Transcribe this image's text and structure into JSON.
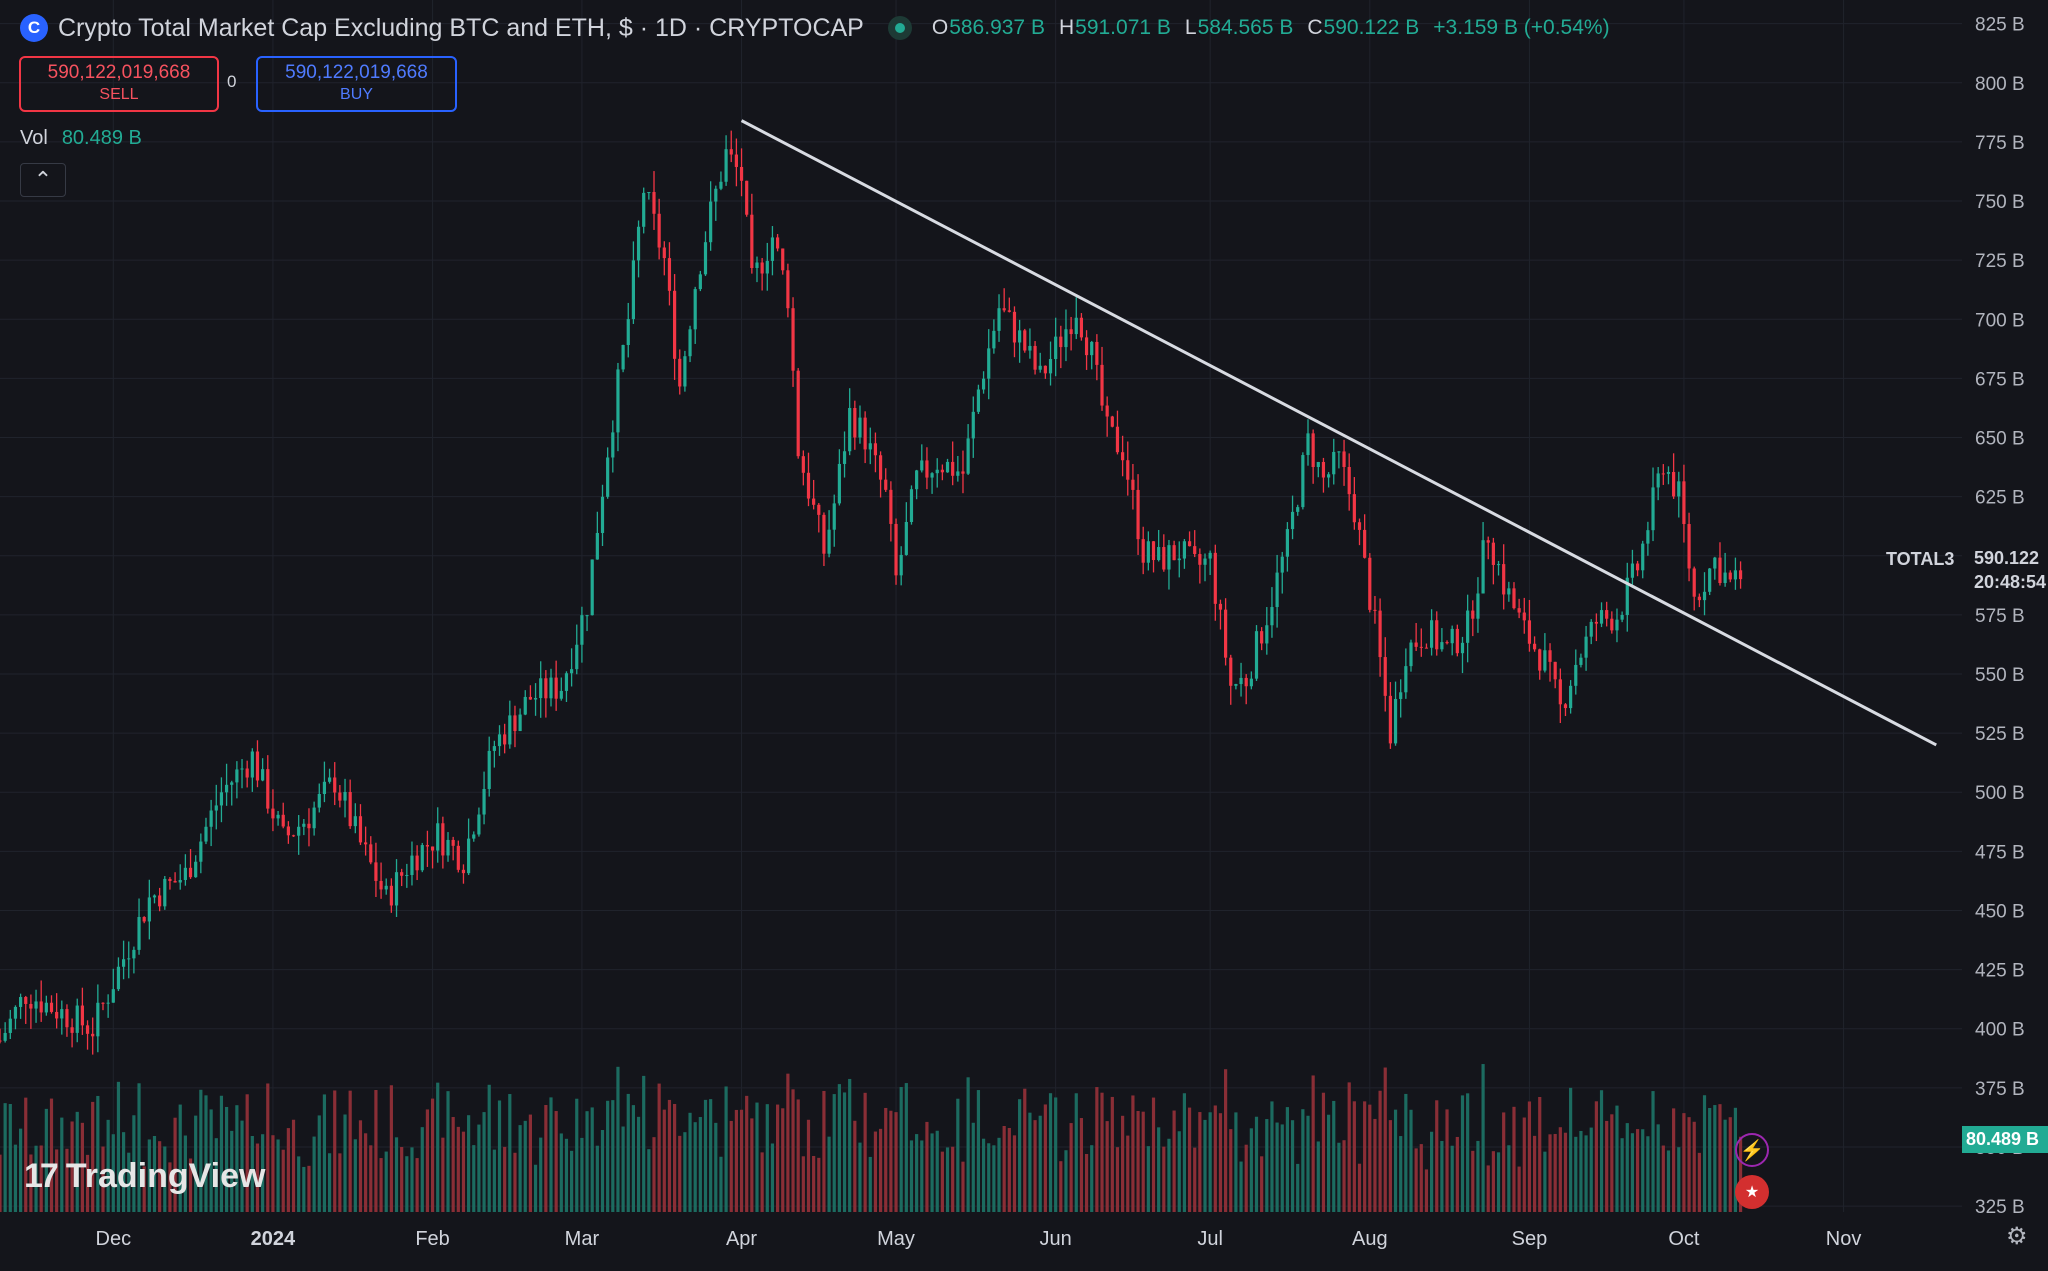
{
  "header": {
    "icon": "cryptocap-icon",
    "title": "Crypto Total Market Cap Excluding BTC and ETH, $ · 1D · CRYPTOCAP",
    "ohlc": [
      {
        "k": "O",
        "v": "586.937 B"
      },
      {
        "k": "H",
        "v": "591.071 B"
      },
      {
        "k": "L",
        "v": "584.565 B"
      },
      {
        "k": "C",
        "v": "590.122 B"
      }
    ],
    "change": "+3.159 B (+0.54%)"
  },
  "trade": {
    "sell_price": "590,122,019,668",
    "sell_label": "SELL",
    "spread": "0",
    "buy_price": "590,122,019,668",
    "buy_label": "BUY"
  },
  "volume_legend": {
    "label": "Vol",
    "value": "80.489 B"
  },
  "collapse_icon": "chevron-up-icon",
  "logo_text": "TradingView",
  "price_label": {
    "symbol": "TOTAL3",
    "price": "590.122",
    "countdown": "20:48:54"
  },
  "volume_label": "80.489 B",
  "colors": {
    "up": "#22ab94",
    "down": "#f23645",
    "up_volume": "#1c6b60",
    "down_volume": "#8a2e36",
    "trendline": "#d8dbe2",
    "background": "#14151b",
    "grid": "#20232c"
  },
  "chart_data": {
    "type": "candlestick",
    "timeframe": "1D",
    "y_axis": {
      "unit": "B",
      "ticks": [
        825,
        800,
        775,
        750,
        725,
        700,
        675,
        650,
        625,
        600,
        575,
        550,
        525,
        500,
        475,
        450,
        425,
        400,
        375,
        350,
        325
      ],
      "tick_labels": [
        "825 B",
        "800 B",
        "775 B",
        "750 B",
        "725 B",
        "700 B",
        "675 B",
        "650 B",
        "625 B",
        "600 B",
        "575 B",
        "550 B",
        "525 B",
        "500 B",
        "475 B",
        "450 B",
        "425 B",
        "400 B",
        "375 B",
        "350 B",
        "325 B"
      ],
      "range": [
        322.5,
        835
      ]
    },
    "x_axis": {
      "labels": [
        "Dec",
        "2024",
        "Feb",
        "Mar",
        "Apr",
        "May",
        "Jun",
        "Jul",
        "Aug",
        "Sep",
        "Oct",
        "Nov"
      ],
      "label_dates": [
        "2023-12-01",
        "2024-01-01",
        "2024-02-01",
        "2024-03-01",
        "2024-04-01",
        "2024-05-01",
        "2024-06-01",
        "2024-07-01",
        "2024-08-01",
        "2024-09-01",
        "2024-10-01",
        "2024-11-01"
      ],
      "range": [
        "2023-11-09",
        "2024-11-24"
      ]
    },
    "close_anchors": [
      [
        "2023-11-09",
        395
      ],
      [
        "2023-11-14",
        415
      ],
      [
        "2023-11-20",
        408
      ],
      [
        "2023-11-27",
        400
      ],
      [
        "2023-12-08",
        455
      ],
      [
        "2023-12-15",
        465
      ],
      [
        "2023-12-22",
        500
      ],
      [
        "2023-12-28",
        515
      ],
      [
        "2024-01-03",
        480
      ],
      [
        "2024-01-08",
        490
      ],
      [
        "2024-01-13",
        505
      ],
      [
        "2024-01-18",
        478
      ],
      [
        "2024-01-23",
        455
      ],
      [
        "2024-01-28",
        472
      ],
      [
        "2024-02-02",
        482
      ],
      [
        "2024-02-07",
        472
      ],
      [
        "2024-02-13",
        520
      ],
      [
        "2024-02-20",
        540
      ],
      [
        "2024-02-26",
        545
      ],
      [
        "2024-03-02",
        580
      ],
      [
        "2024-03-06",
        645
      ],
      [
        "2024-03-10",
        700
      ],
      [
        "2024-03-13",
        755
      ],
      [
        "2024-03-17",
        725
      ],
      [
        "2024-03-20",
        672
      ],
      [
        "2024-03-23",
        715
      ],
      [
        "2024-03-26",
        745
      ],
      [
        "2024-03-29",
        770
      ],
      [
        "2024-04-01",
        760
      ],
      [
        "2024-04-03",
        715
      ],
      [
        "2024-04-07",
        735
      ],
      [
        "2024-04-10",
        710
      ],
      [
        "2024-04-12",
        645
      ],
      [
        "2024-04-14",
        628
      ],
      [
        "2024-04-17",
        602
      ],
      [
        "2024-04-19",
        622
      ],
      [
        "2024-04-22",
        660
      ],
      [
        "2024-04-25",
        650
      ],
      [
        "2024-04-29",
        625
      ],
      [
        "2024-05-01",
        590
      ],
      [
        "2024-05-05",
        632
      ],
      [
        "2024-05-09",
        640
      ],
      [
        "2024-05-14",
        635
      ],
      [
        "2024-05-17",
        670
      ],
      [
        "2024-05-21",
        705
      ],
      [
        "2024-05-25",
        692
      ],
      [
        "2024-05-29",
        675
      ],
      [
        "2024-06-02",
        692
      ],
      [
        "2024-06-05",
        705
      ],
      [
        "2024-06-08",
        685
      ],
      [
        "2024-06-11",
        652
      ],
      [
        "2024-06-14",
        645
      ],
      [
        "2024-06-18",
        602
      ],
      [
        "2024-06-21",
        598
      ],
      [
        "2024-06-25",
        602
      ],
      [
        "2024-06-28",
        595
      ],
      [
        "2024-07-01",
        598
      ],
      [
        "2024-07-05",
        545
      ],
      [
        "2024-07-08",
        548
      ],
      [
        "2024-07-12",
        575
      ],
      [
        "2024-07-16",
        605
      ],
      [
        "2024-07-20",
        648
      ],
      [
        "2024-07-23",
        632
      ],
      [
        "2024-07-26",
        640
      ],
      [
        "2024-07-29",
        620
      ],
      [
        "2024-08-02",
        570
      ],
      [
        "2024-08-05",
        525
      ],
      [
        "2024-08-08",
        560
      ],
      [
        "2024-08-12",
        568
      ],
      [
        "2024-08-16",
        560
      ],
      [
        "2024-08-20",
        570
      ],
      [
        "2024-08-24",
        610
      ],
      [
        "2024-08-27",
        588
      ],
      [
        "2024-08-31",
        568
      ],
      [
        "2024-09-04",
        555
      ],
      [
        "2024-09-07",
        535
      ],
      [
        "2024-09-10",
        555
      ],
      [
        "2024-09-14",
        572
      ],
      [
        "2024-09-18",
        575
      ],
      [
        "2024-09-22",
        595
      ],
      [
        "2024-09-27",
        640
      ],
      [
        "2024-09-30",
        625
      ],
      [
        "2024-10-03",
        582
      ],
      [
        "2024-10-07",
        598
      ],
      [
        "2024-10-10",
        588
      ],
      [
        "2024-10-12",
        590.122
      ]
    ],
    "trendline": {
      "start": [
        "2024-04-01",
        784
      ],
      "end": [
        "2024-11-19",
        520
      ]
    },
    "volume": {
      "last": "80.489 B"
    }
  }
}
